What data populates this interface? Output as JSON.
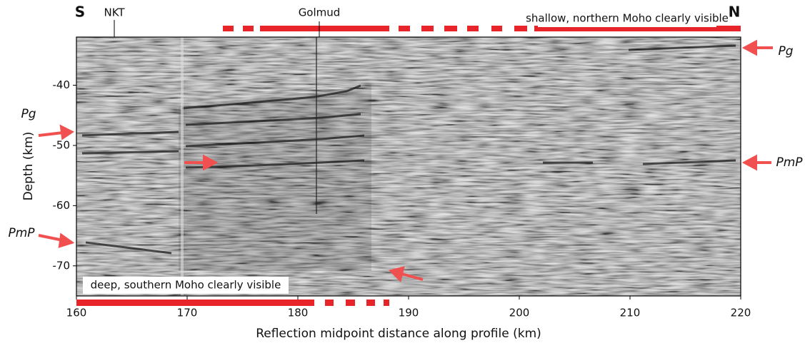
{
  "chart_data": {
    "type": "seismic-section",
    "xlabel": "Reflection midpoint distance along profile (km)",
    "ylabel": "Depth (km)",
    "xlim": [
      160,
      220
    ],
    "ylim": [
      -75,
      -32
    ],
    "xticks": [
      160,
      170,
      180,
      190,
      200,
      210,
      220
    ],
    "yticks": [
      -40,
      -50,
      -60,
      -70
    ],
    "annotations": {
      "south": "S",
      "north": "N",
      "nkt": "NKT",
      "golmud": "Golmud",
      "shallow": "shallow, northern Moho clearly visible",
      "deep": "deep, southern Moho clearly visible",
      "pg_left": "Pg",
      "pmp_left": "PmP",
      "pg_right": "Pg",
      "pmp_right": "PmP"
    }
  }
}
